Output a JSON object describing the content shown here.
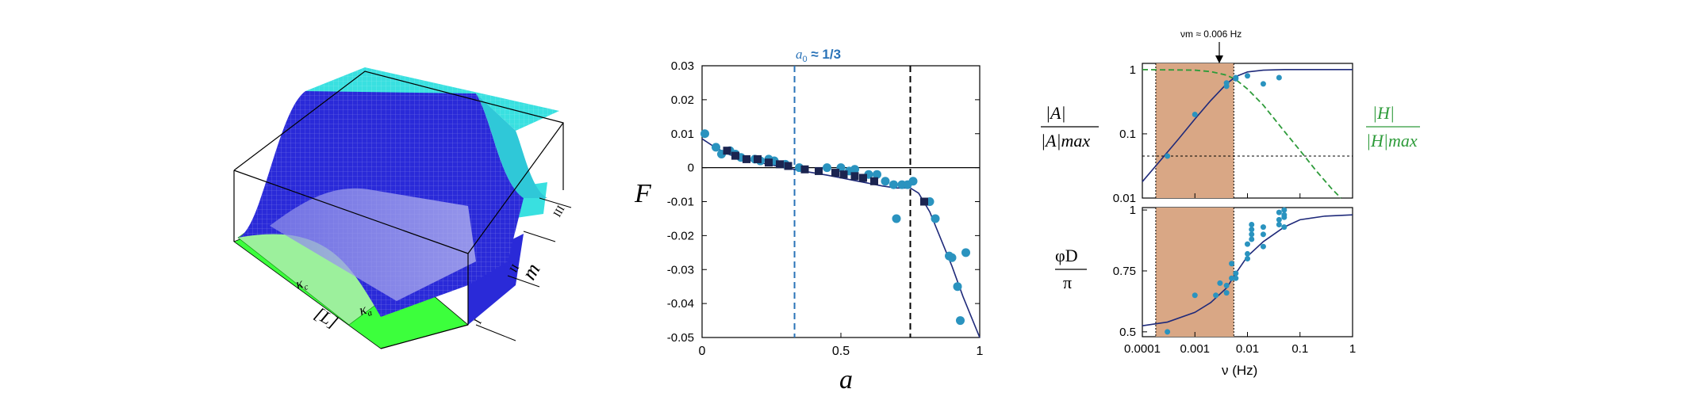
{
  "colors": {
    "navy": "#1f2a7a",
    "teal": "#2a93bf",
    "black": "#000000",
    "blue_dash": "#2a73b8",
    "green": "#2e9b3a",
    "tan": "#d9a785",
    "surface_blue": "#2a2ad8",
    "surface_cyan": "#39e0e0",
    "surface_green": "#3cff3c"
  },
  "panel_a": {
    "axis_x_label": "[L]",
    "axis_y_label": "m",
    "kappa_c": "κc",
    "kappa_a": "κa",
    "regions": [
      "I",
      "II",
      "III"
    ]
  },
  "chart_data": [
    {
      "type": "scatter",
      "panel": "b",
      "ylabel": "F",
      "xlabel": "a",
      "xlim": [
        0,
        1
      ],
      "ylim": [
        -0.05,
        0.03
      ],
      "x_ticks": [
        "0",
        "0.5",
        "1"
      ],
      "y_ticks": [
        "0.03",
        "0.02",
        "0.01",
        "0",
        "-0.01",
        "-0.02",
        "-0.03",
        "-0.04",
        "-0.05"
      ],
      "annotation_a0": "a",
      "annotation_a0_sub": "0",
      "annotation_value": " ≈ 1/3",
      "vlines": [
        {
          "x": 0.333,
          "color": "blue"
        },
        {
          "x": 0.75,
          "color": "black"
        }
      ],
      "hline": 0,
      "fit_curve": [
        [
          0.0,
          0.0085
        ],
        [
          0.05,
          0.0058
        ],
        [
          0.1,
          0.0038
        ],
        [
          0.15,
          0.0025
        ],
        [
          0.2,
          0.0016
        ],
        [
          0.25,
          0.0008
        ],
        [
          0.3,
          0.0
        ],
        [
          0.35,
          -0.0008
        ],
        [
          0.4,
          -0.0015
        ],
        [
          0.45,
          -0.0022
        ],
        [
          0.5,
          -0.003
        ],
        [
          0.55,
          -0.0038
        ],
        [
          0.6,
          -0.0046
        ],
        [
          0.65,
          -0.0054
        ],
        [
          0.7,
          -0.006
        ],
        [
          0.75,
          -0.006
        ],
        [
          0.78,
          -0.0075
        ],
        [
          0.82,
          -0.013
        ],
        [
          0.86,
          -0.021
        ],
        [
          0.9,
          -0.029
        ],
        [
          0.94,
          -0.038
        ],
        [
          0.97,
          -0.044
        ],
        [
          1.0,
          -0.05
        ]
      ],
      "circles": [
        [
          0.01,
          0.01
        ],
        [
          0.05,
          0.006
        ],
        [
          0.07,
          0.004
        ],
        [
          0.1,
          0.005
        ],
        [
          0.12,
          0.004
        ],
        [
          0.14,
          0.003
        ],
        [
          0.19,
          0.0025
        ],
        [
          0.21,
          0.002
        ],
        [
          0.24,
          0.0025
        ],
        [
          0.26,
          0.002
        ],
        [
          0.3,
          0.001
        ],
        [
          0.35,
          0.0
        ],
        [
          0.45,
          0.0
        ],
        [
          0.5,
          0.0
        ],
        [
          0.53,
          -0.001
        ],
        [
          0.55,
          -0.0005
        ],
        [
          0.6,
          -0.002
        ],
        [
          0.63,
          -0.002
        ],
        [
          0.66,
          -0.004
        ],
        [
          0.69,
          -0.005
        ],
        [
          0.72,
          -0.005
        ],
        [
          0.74,
          -0.005
        ],
        [
          0.76,
          -0.004
        ],
        [
          0.82,
          -0.01
        ],
        [
          0.84,
          -0.015
        ],
        [
          0.7,
          -0.015
        ],
        [
          0.89,
          -0.026
        ],
        [
          0.95,
          -0.025
        ],
        [
          0.9,
          -0.0265
        ],
        [
          0.92,
          -0.035
        ],
        [
          0.93,
          -0.045
        ]
      ],
      "squares": [
        [
          0.09,
          0.005
        ],
        [
          0.12,
          0.0035
        ],
        [
          0.16,
          0.0025
        ],
        [
          0.2,
          0.0025
        ],
        [
          0.24,
          0.0015
        ],
        [
          0.28,
          0.001
        ],
        [
          0.31,
          0.0005
        ],
        [
          0.37,
          -0.0005
        ],
        [
          0.42,
          -0.001
        ],
        [
          0.48,
          -0.0015
        ],
        [
          0.51,
          -0.002
        ],
        [
          0.55,
          -0.0025
        ],
        [
          0.58,
          -0.003
        ],
        [
          0.62,
          -0.004
        ],
        [
          0.8,
          -0.01
        ]
      ]
    },
    {
      "type": "line",
      "panel": "c-top",
      "ylabel_num": "|A|",
      "ylabel_den": "|A|max",
      "ylabel2_num": "|H|",
      "ylabel2_den": "|H|max",
      "xscale": "log",
      "yscale": "log",
      "xlim": [
        0.0001,
        1
      ],
      "ylim": [
        0.01,
        1.25
      ],
      "y_ticks": [
        "1",
        "0.1",
        "0.01"
      ],
      "nu_m_label": "νm ≈ 0.006 Hz",
      "shade_x": [
        0.00018,
        0.0055
      ],
      "hline": 0.045,
      "fit_curve": [
        [
          0.0001,
          0.018
        ],
        [
          0.0002,
          0.035
        ],
        [
          0.0005,
          0.085
        ],
        [
          0.001,
          0.17
        ],
        [
          0.002,
          0.33
        ],
        [
          0.004,
          0.6
        ],
        [
          0.006,
          0.78
        ],
        [
          0.01,
          0.92
        ],
        [
          0.02,
          0.98
        ],
        [
          0.05,
          1.0
        ],
        [
          1,
          1.0
        ]
      ],
      "green_curve": [
        [
          0.0001,
          1.0
        ],
        [
          0.001,
          0.98
        ],
        [
          0.002,
          0.93
        ],
        [
          0.004,
          0.82
        ],
        [
          0.006,
          0.7
        ],
        [
          0.01,
          0.5
        ],
        [
          0.02,
          0.28
        ],
        [
          0.05,
          0.11
        ],
        [
          0.1,
          0.055
        ],
        [
          0.2,
          0.027
        ],
        [
          0.4,
          0.014
        ],
        [
          0.6,
          0.01
        ]
      ],
      "points": [
        [
          0.0003,
          0.045
        ],
        [
          0.001,
          0.2
        ],
        [
          0.004,
          0.55
        ],
        [
          0.004,
          0.62
        ],
        [
          0.006,
          0.75
        ],
        [
          0.006,
          0.72
        ],
        [
          0.01,
          0.8
        ],
        [
          0.02,
          0.6
        ],
        [
          0.04,
          0.75
        ]
      ]
    },
    {
      "type": "line",
      "panel": "c-bottom",
      "ylabel_num": "φD",
      "ylabel_den": "π",
      "xlabel": "ν (Hz)",
      "xscale": "log",
      "xlim": [
        0.0001,
        1
      ],
      "ylim": [
        0.48,
        1.01
      ],
      "x_ticks": [
        "0.0001",
        "0.001",
        "0.01",
        "0.1",
        "1"
      ],
      "y_ticks": [
        "1",
        "0.75",
        "0.5"
      ],
      "shade_x": [
        0.00018,
        0.0055
      ],
      "fit_curve": [
        [
          0.0001,
          0.525
        ],
        [
          0.0003,
          0.54
        ],
        [
          0.001,
          0.58
        ],
        [
          0.002,
          0.62
        ],
        [
          0.004,
          0.68
        ],
        [
          0.006,
          0.74
        ],
        [
          0.01,
          0.81
        ],
        [
          0.02,
          0.87
        ],
        [
          0.05,
          0.93
        ],
        [
          0.1,
          0.96
        ],
        [
          0.3,
          0.975
        ],
        [
          1,
          0.98
        ]
      ],
      "points": [
        [
          0.0003,
          0.5
        ],
        [
          0.001,
          0.65
        ],
        [
          0.0025,
          0.65
        ],
        [
          0.003,
          0.7
        ],
        [
          0.004,
          0.69
        ],
        [
          0.004,
          0.66
        ],
        [
          0.005,
          0.72
        ],
        [
          0.005,
          0.78
        ],
        [
          0.006,
          0.72
        ],
        [
          0.006,
          0.74
        ],
        [
          0.01,
          0.8
        ],
        [
          0.01,
          0.82
        ],
        [
          0.01,
          0.86
        ],
        [
          0.012,
          0.88
        ],
        [
          0.012,
          0.9
        ],
        [
          0.012,
          0.92
        ],
        [
          0.012,
          0.94
        ],
        [
          0.02,
          0.85
        ],
        [
          0.02,
          0.9
        ],
        [
          0.02,
          0.93
        ],
        [
          0.04,
          0.96
        ],
        [
          0.04,
          0.99
        ],
        [
          0.04,
          0.94
        ],
        [
          0.05,
          0.98
        ],
        [
          0.05,
          0.97
        ],
        [
          0.05,
          0.93
        ],
        [
          0.05,
          1.0
        ]
      ]
    }
  ]
}
